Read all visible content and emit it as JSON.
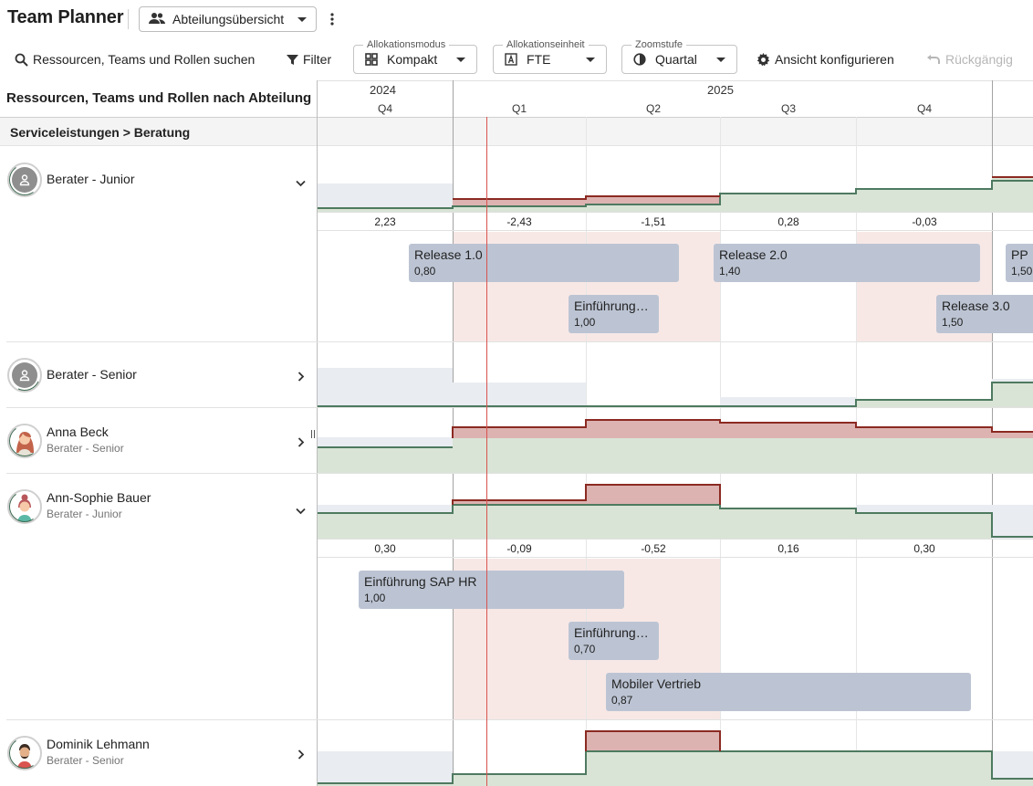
{
  "app": {
    "title": "Team Planner"
  },
  "view_select": {
    "label": "Abteilungsübersicht",
    "icon": "people-icon"
  },
  "toolbar": {
    "search_label": "Ressourcen, Teams und Rollen suchen",
    "filter_label": "Filter",
    "alloc_mode": {
      "legend": "Allokationsmodus",
      "value": "Kompakt"
    },
    "alloc_unit": {
      "legend": "Allokationseinheit",
      "value": "FTE"
    },
    "zoom": {
      "legend": "Zoomstufe",
      "value": "Quartal"
    },
    "config_label": "Ansicht konfigurieren",
    "undo_label": "Rückgängig"
  },
  "grid": {
    "left_header": "Ressourcen, Teams und Rollen nach Abteilung",
    "years": [
      "2024",
      "2025"
    ],
    "quarters": [
      "Q4",
      "Q1",
      "Q2",
      "Q3",
      "Q4"
    ],
    "group": "Serviceleistungen > Beratung"
  },
  "colors": {
    "capacity_line": "#4e7a60",
    "capacity_fill": "#d9e4d6",
    "overbooking_line": "#8b2a22",
    "overbooking_fill": "#dcb3b1",
    "bar": "#bcc4d3",
    "today": "#d9534f"
  },
  "rows": [
    {
      "name": "Berater - Junior",
      "role": "",
      "expanded": true,
      "balances": [
        "2,23",
        "-2,43",
        "-1,51",
        "0,28",
        "-0,03"
      ],
      "bars": [
        {
          "name": "Release 1.0",
          "value": "0,80"
        },
        {
          "name": "Release 2.0",
          "value": "1,40"
        },
        {
          "name": "PPM",
          "value": "1,50"
        },
        {
          "name": "Einführungs…",
          "value": "1,00"
        },
        {
          "name": "Release 3.0",
          "value": "1,50"
        }
      ]
    },
    {
      "name": "Berater - Senior",
      "role": "",
      "expanded": false
    },
    {
      "name": "Anna Beck",
      "role": "Berater - Senior",
      "expanded": false
    },
    {
      "name": "Ann-Sophie Bauer",
      "role": "Berater - Junior",
      "expanded": true,
      "balances": [
        "0,30",
        "-0,09",
        "-0,52",
        "0,16",
        "0,30"
      ],
      "bars": [
        {
          "name": "Einführung SAP HR",
          "value": "1,00"
        },
        {
          "name": "Einführungs…",
          "value": "0,70"
        },
        {
          "name": "Mobiler Vertrieb",
          "value": "0,87"
        }
      ]
    },
    {
      "name": "Dominik Lehmann",
      "role": "Berater - Senior",
      "expanded": false
    }
  ]
}
